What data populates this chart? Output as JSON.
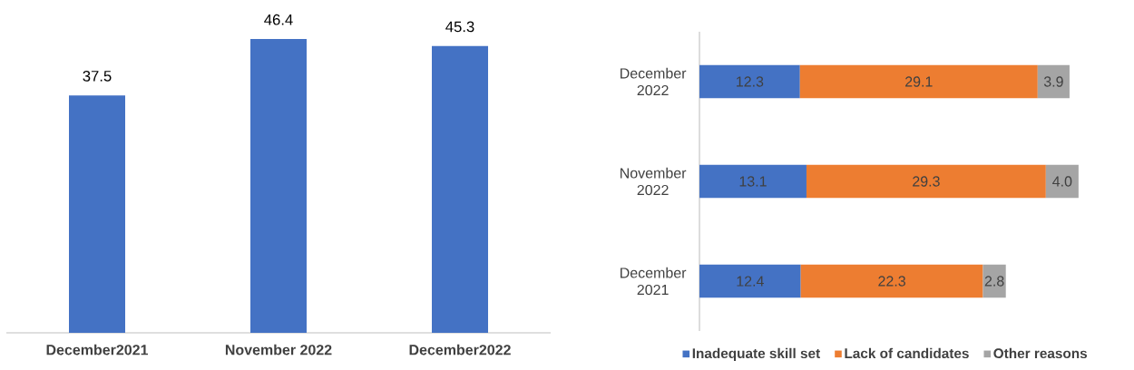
{
  "chart_data": [
    {
      "type": "bar",
      "categories": [
        "December2021",
        "November 2022",
        "December2022"
      ],
      "values": [
        37.5,
        46.4,
        45.3
      ],
      "color": "#4472c4",
      "data_labels": true
    },
    {
      "type": "bar",
      "orientation": "horizontal",
      "stacked": true,
      "legend": "bottom",
      "categories": [
        "December 2022",
        "November 2022",
        "December 2021"
      ],
      "series": [
        {
          "name": "Inadequate skill set",
          "color": "#4472c4",
          "values": [
            12.3,
            13.1,
            12.4
          ],
          "value_labels": [
            "12.3",
            "13.1",
            "12.4"
          ]
        },
        {
          "name": "Lack of candidates",
          "color": "#ed7d31",
          "values": [
            29.1,
            29.3,
            22.3
          ],
          "value_labels": [
            "29.1",
            "29.3",
            "22.3"
          ]
        },
        {
          "name": "Other reasons",
          "color": "#a5a5a5",
          "values": [
            3.9,
            4.0,
            2.8
          ],
          "value_labels": [
            "3.9",
            "4.0",
            "2.8"
          ]
        }
      ]
    }
  ]
}
